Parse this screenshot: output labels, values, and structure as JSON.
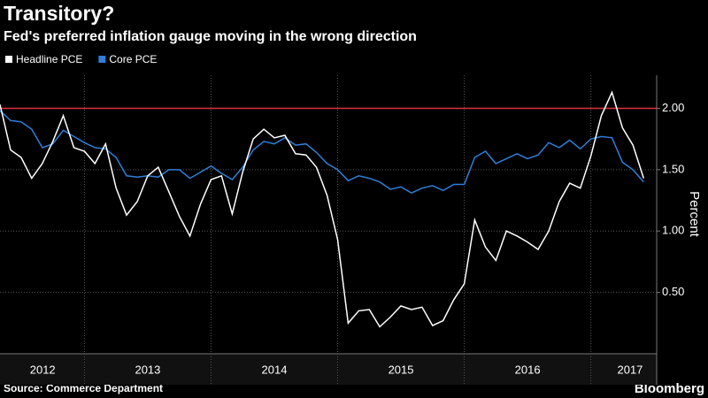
{
  "chart_data": {
    "type": "line",
    "title": "Transitory?",
    "subtitle": "Fed's preferred inflation gauge moving in the wrong direction",
    "y_label": "Percent",
    "source": "Source: Commerce Department",
    "brand": "Bloomberg",
    "x": [
      2012.333,
      2012.417,
      2012.5,
      2012.583,
      2012.667,
      2012.75,
      2012.833,
      2012.917,
      2013,
      2013.083,
      2013.167,
      2013.25,
      2013.333,
      2013.417,
      2013.5,
      2013.583,
      2013.667,
      2013.75,
      2013.833,
      2013.917,
      2014,
      2014.083,
      2014.167,
      2014.25,
      2014.333,
      2014.417,
      2014.5,
      2014.583,
      2014.667,
      2014.75,
      2014.833,
      2014.917,
      2015,
      2015.083,
      2015.167,
      2015.25,
      2015.333,
      2015.417,
      2015.5,
      2015.583,
      2015.667,
      2015.75,
      2015.833,
      2015.917,
      2016,
      2016.083,
      2016.167,
      2016.25,
      2016.333,
      2016.417,
      2016.5,
      2016.583,
      2016.667,
      2016.75,
      2016.833,
      2016.917,
      2017,
      2017.083,
      2017.167,
      2017.25,
      2017.333,
      2017.417
    ],
    "series": [
      {
        "name": "Headline PCE",
        "color": "#ffffff",
        "values": [
          2.03,
          1.66,
          1.6,
          1.43,
          1.55,
          1.73,
          1.94,
          1.68,
          1.65,
          1.55,
          1.71,
          1.35,
          1.13,
          1.24,
          1.45,
          1.52,
          1.32,
          1.12,
          0.96,
          1.22,
          1.42,
          1.45,
          1.14,
          1.48,
          1.75,
          1.83,
          1.76,
          1.78,
          1.63,
          1.62,
          1.52,
          1.29,
          0.93,
          0.25,
          0.35,
          0.36,
          0.22,
          0.3,
          0.39,
          0.36,
          0.38,
          0.23,
          0.27,
          0.44,
          0.57,
          1.09,
          0.87,
          0.76,
          1.0,
          0.96,
          0.91,
          0.85,
          1.0,
          1.24,
          1.39,
          1.35,
          1.61,
          1.94,
          2.13,
          1.84,
          1.7,
          1.43
        ]
      },
      {
        "name": "Core PCE",
        "color": "#2f7ed8",
        "values": [
          1.98,
          1.9,
          1.89,
          1.83,
          1.68,
          1.71,
          1.82,
          1.77,
          1.72,
          1.68,
          1.67,
          1.6,
          1.45,
          1.44,
          1.45,
          1.44,
          1.5,
          1.5,
          1.43,
          1.48,
          1.53,
          1.47,
          1.42,
          1.52,
          1.66,
          1.73,
          1.71,
          1.76,
          1.7,
          1.71,
          1.64,
          1.55,
          1.5,
          1.41,
          1.45,
          1.43,
          1.4,
          1.34,
          1.36,
          1.31,
          1.35,
          1.37,
          1.33,
          1.38,
          1.38,
          1.6,
          1.65,
          1.55,
          1.59,
          1.63,
          1.59,
          1.62,
          1.72,
          1.68,
          1.74,
          1.67,
          1.75,
          1.77,
          1.76,
          1.56,
          1.5,
          1.4
        ]
      }
    ],
    "reference_line": {
      "value": 2,
      "color": "#e03040"
    },
    "xlim": [
      2012.333,
      2017.52
    ],
    "xticks": [
      {
        "value": 2012.67,
        "label": "2012"
      },
      {
        "value": 2013.5,
        "label": "2013"
      },
      {
        "value": 2014.5,
        "label": "2014"
      },
      {
        "value": 2015.5,
        "label": "2015"
      },
      {
        "value": 2016.5,
        "label": "2016"
      },
      {
        "value": 2017.31,
        "label": "2017"
      }
    ],
    "xgrid": [
      2013,
      2014,
      2015,
      2016,
      2017
    ],
    "ylim": [
      0,
      2.27
    ],
    "yticks": [
      {
        "value": 0.5,
        "label": "0.50"
      },
      {
        "value": 1,
        "label": "1.00"
      },
      {
        "value": 1.5,
        "label": "1.50"
      },
      {
        "value": 2,
        "label": "2.00"
      }
    ],
    "grid": true
  }
}
